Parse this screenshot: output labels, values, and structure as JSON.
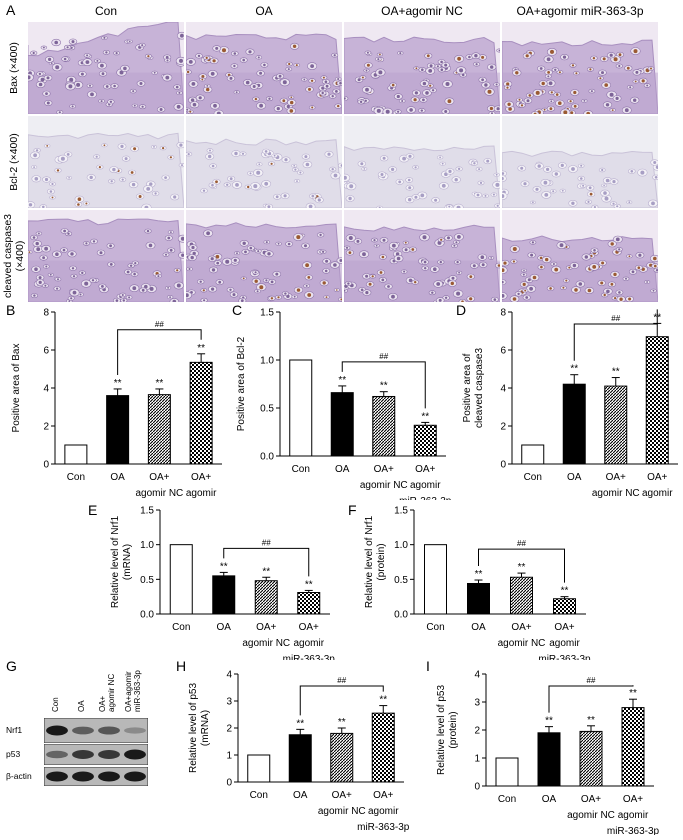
{
  "panel_letters": [
    "A",
    "B",
    "C",
    "D",
    "E",
    "F",
    "G",
    "H",
    "I"
  ],
  "micrographs": {
    "columns": [
      "Con",
      "OA",
      "OA+agomir NC",
      "OA+agomir miR-363-3p"
    ],
    "rows": [
      {
        "label": "Bax (×400)",
        "stain": "bax"
      },
      {
        "label": "Bcl-2 (×400)",
        "stain": "bcl2"
      },
      {
        "label": "cleaved caspase3 (×400)",
        "label_lines": [
          "cleaved caspase3",
          "(×400)"
        ],
        "stain": "casp"
      }
    ]
  },
  "blot": {
    "lanes": [
      [
        "Con"
      ],
      [
        "OA"
      ],
      [
        "OA+",
        "agomir NC"
      ],
      [
        "OA+agomir",
        "miR-363-3p"
      ]
    ],
    "bands": [
      {
        "label": "Nrf1",
        "intensity": [
          1.0,
          0.55,
          0.6,
          0.25
        ]
      },
      {
        "label": "p53",
        "intensity": [
          0.5,
          0.8,
          0.8,
          1.0
        ]
      },
      {
        "label": "β-actin",
        "intensity": [
          1.0,
          1.0,
          1.0,
          1.0
        ]
      }
    ]
  },
  "chart_data": [
    {
      "panel": "B",
      "type": "bar",
      "ylabel": "Positive area of Bax",
      "ylim": [
        0,
        8
      ],
      "yticks": [
        0,
        2,
        4,
        6,
        8
      ],
      "categories": [
        [
          "Con"
        ],
        [
          "OA"
        ],
        [
          "OA+",
          "agomir NC"
        ],
        [
          "OA+",
          "agomir",
          "miR-363-3p"
        ]
      ],
      "values": [
        1.0,
        3.6,
        3.65,
        5.35
      ],
      "errors": [
        0,
        0.35,
        0.3,
        0.45
      ],
      "significance": [
        "",
        "**",
        "**",
        "**"
      ],
      "bracket": {
        "from": 1,
        "to": 3,
        "label": "##"
      }
    },
    {
      "panel": "C",
      "type": "bar",
      "ylabel": "Positive area of Bcl-2",
      "ylim": [
        0,
        1.5
      ],
      "yticks": [
        0.0,
        0.5,
        1.0,
        1.5
      ],
      "categories": [
        [
          "Con"
        ],
        [
          "OA"
        ],
        [
          "OA+",
          "agomir NC"
        ],
        [
          "OA+",
          "agomir",
          "miR-363-3p"
        ]
      ],
      "values": [
        1.0,
        0.66,
        0.62,
        0.32
      ],
      "errors": [
        0,
        0.07,
        0.05,
        0.03
      ],
      "significance": [
        "",
        "**",
        "**",
        "**"
      ],
      "bracket": {
        "from": 1,
        "to": 3,
        "label": "##"
      }
    },
    {
      "panel": "D",
      "type": "bar",
      "ylabel": "Positive area of cleaved caspase3",
      "ylabel_lines": [
        "Positive area of",
        "cleaved caspase3"
      ],
      "ylim": [
        0,
        8
      ],
      "yticks": [
        0,
        2,
        4,
        6,
        8
      ],
      "categories": [
        [
          "Con"
        ],
        [
          "OA"
        ],
        [
          "OA+",
          "agomir NC"
        ],
        [
          "OA+",
          "agomir",
          "miR-363-3p"
        ]
      ],
      "values": [
        1.0,
        4.2,
        4.1,
        6.7
      ],
      "errors": [
        0,
        0.5,
        0.45,
        0.7
      ],
      "significance": [
        "",
        "**",
        "**",
        "**"
      ],
      "bracket": {
        "from": 1,
        "to": 3,
        "label": "##"
      }
    },
    {
      "panel": "E",
      "type": "bar",
      "ylabel": "Relative level of Nrf1 (mRNA)",
      "ylabel_lines": [
        "Relative level of Nrf1",
        "(mRNA)"
      ],
      "ylim": [
        0,
        1.5
      ],
      "yticks": [
        0.0,
        0.5,
        1.0,
        1.5
      ],
      "categories": [
        [
          "Con"
        ],
        [
          "OA"
        ],
        [
          "OA+",
          "agomir NC"
        ],
        [
          "OA+",
          "agomir",
          "miR-363-3p"
        ]
      ],
      "values": [
        1.0,
        0.55,
        0.48,
        0.31
      ],
      "errors": [
        0,
        0.05,
        0.05,
        0.03
      ],
      "significance": [
        "",
        "**",
        "**",
        "**"
      ],
      "bracket": {
        "from": 1,
        "to": 3,
        "label": "##"
      }
    },
    {
      "panel": "F",
      "type": "bar",
      "ylabel": "Relative level of Nrf1 (protein)",
      "ylabel_lines": [
        "Relative level of Nrf1",
        "(protein)"
      ],
      "ylim": [
        0,
        1.5
      ],
      "yticks": [
        0.0,
        0.5,
        1.0,
        1.5
      ],
      "categories": [
        [
          "Con"
        ],
        [
          "OA"
        ],
        [
          "OA+",
          "agomir NC"
        ],
        [
          "OA+",
          "agomir",
          "miR-363-3p"
        ]
      ],
      "values": [
        1.0,
        0.44,
        0.53,
        0.22
      ],
      "errors": [
        0,
        0.05,
        0.06,
        0.03
      ],
      "significance": [
        "",
        "**",
        "**",
        "**"
      ],
      "bracket": {
        "from": 1,
        "to": 3,
        "label": "##"
      }
    },
    {
      "panel": "H",
      "type": "bar",
      "ylabel": "Relative level of p53 (mRNA)",
      "ylabel_lines": [
        "Relative level of p53",
        "(mRNA)"
      ],
      "ylim": [
        0,
        4
      ],
      "yticks": [
        0,
        1,
        2,
        3,
        4
      ],
      "categories": [
        [
          "Con"
        ],
        [
          "OA"
        ],
        [
          "OA+",
          "agomir NC"
        ],
        [
          "OA+",
          "agomir",
          "miR-363-3p"
        ]
      ],
      "values": [
        1.0,
        1.75,
        1.8,
        2.55
      ],
      "errors": [
        0,
        0.2,
        0.2,
        0.28
      ],
      "significance": [
        "",
        "**",
        "**",
        "**"
      ],
      "bracket": {
        "from": 1,
        "to": 3,
        "label": "##"
      }
    },
    {
      "panel": "I",
      "type": "bar",
      "ylabel": "Relative level of p53 (protein)",
      "ylabel_lines": [
        "Relative level of p53",
        "(protein)"
      ],
      "ylim": [
        0,
        4
      ],
      "yticks": [
        0,
        1,
        2,
        3,
        4
      ],
      "categories": [
        [
          "Con"
        ],
        [
          "OA"
        ],
        [
          "OA+",
          "agomir NC"
        ],
        [
          "OA+",
          "agomir",
          "miR-363-3p"
        ]
      ],
      "values": [
        1.0,
        1.9,
        1.95,
        2.8
      ],
      "errors": [
        0,
        0.22,
        0.2,
        0.3
      ],
      "significance": [
        "",
        "**",
        "**",
        "**"
      ],
      "bracket": {
        "from": 1,
        "to": 3,
        "label": "##"
      }
    }
  ]
}
